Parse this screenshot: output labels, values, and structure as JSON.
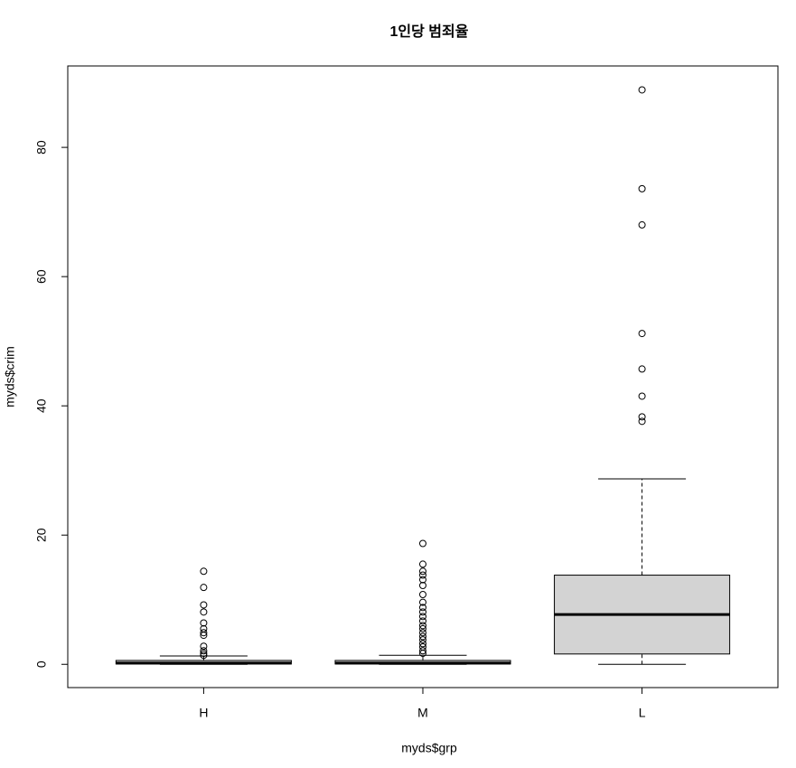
{
  "chart_data": {
    "type": "boxplot",
    "title": "1인당 범죄율",
    "x_label": "myds$grp",
    "y_label": "myds$crim",
    "categories": [
      "H",
      "M",
      "L"
    ],
    "boxes": [
      {
        "min": 0,
        "q1": 0.05,
        "median": 0.2,
        "q3": 0.6,
        "max": 1.3,
        "outliers": [
          14.4,
          11.9,
          9.2,
          8.1,
          6.4,
          5.5,
          4.9,
          4.5,
          2.8,
          2.1,
          1.7,
          1.4
        ]
      },
      {
        "min": 0,
        "q1": 0.05,
        "median": 0.2,
        "q3": 0.6,
        "max": 1.4,
        "outliers": [
          18.7,
          15.5,
          14.4,
          13.8,
          13.1,
          12.2,
          10.8,
          9.6,
          8.8,
          8.1,
          7.4,
          6.7,
          6.0,
          5.5,
          4.9,
          4.3,
          3.8,
          3.2,
          2.7,
          2.1,
          1.7
        ]
      },
      {
        "min": 0,
        "q1": 1.6,
        "median": 7.7,
        "q3": 13.8,
        "max": 28.7,
        "outliers": [
          88.9,
          73.6,
          68.0,
          51.2,
          45.7,
          41.5,
          38.3,
          37.6
        ]
      }
    ],
    "color": "#d3d3d3",
    "ylim": [
      -3.6,
      92.6
    ],
    "yticks": [
      0,
      20,
      40,
      60,
      80
    ]
  }
}
